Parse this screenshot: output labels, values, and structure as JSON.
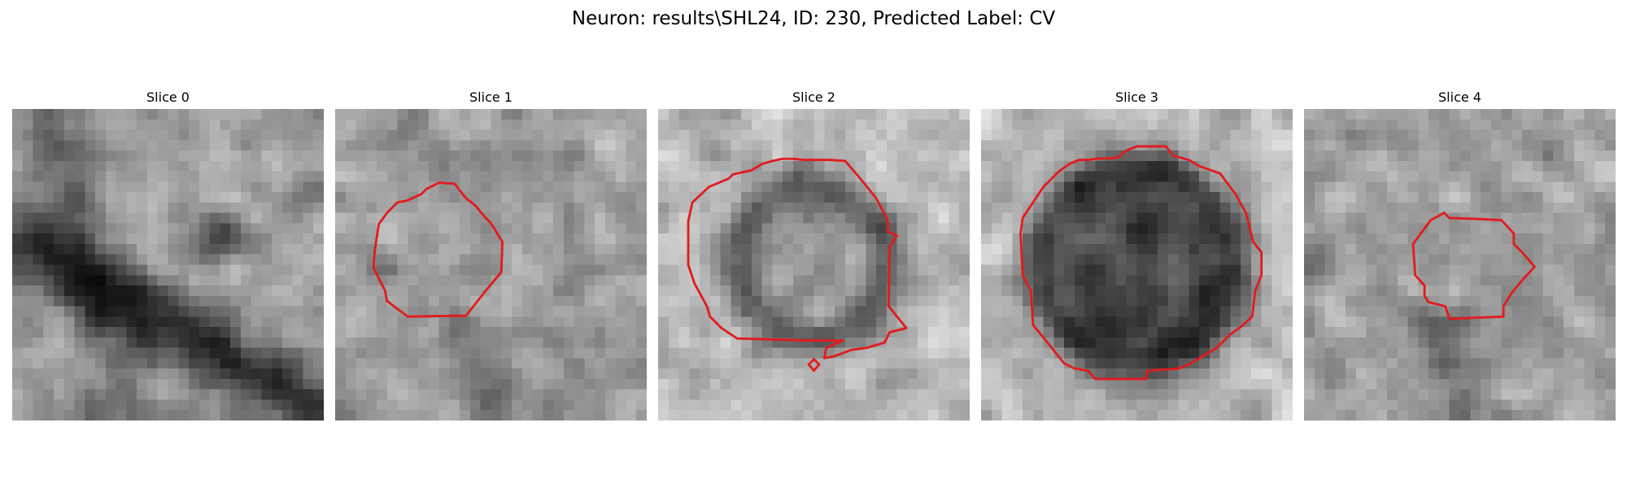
{
  "figure": {
    "title": "Neuron: results\\SHL24, ID: 230, Predicted Label: CV"
  },
  "panels": [
    {
      "title": "Slice 0",
      "dark_feature": "band",
      "contour": false
    },
    {
      "title": "Slice 1",
      "dark_feature": "none",
      "contour": true
    },
    {
      "title": "Slice 2",
      "dark_feature": "ring",
      "contour": true
    },
    {
      "title": "Slice 3",
      "dark_feature": "disk",
      "contour": true
    },
    {
      "title": "Slice 4",
      "dark_feature": "none",
      "contour": true
    }
  ],
  "colors": {
    "contour": "#e31a1c"
  }
}
